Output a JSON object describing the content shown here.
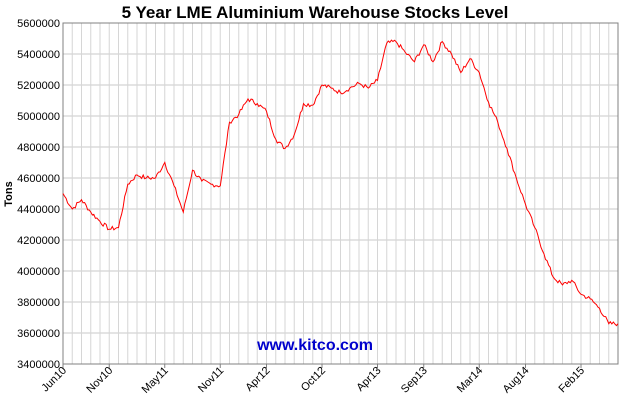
{
  "chart_data": {
    "type": "line",
    "title": "5 Year LME Aluminium Warehouse Stocks Level",
    "xlabel": "",
    "ylabel": "Tons",
    "ylim": [
      3400000,
      5600000
    ],
    "yticks": [
      "3400000",
      "3600000",
      "3800000",
      "4000000",
      "4200000",
      "4400000",
      "4600000",
      "4800000",
      "5000000",
      "5200000",
      "5400000",
      "5600000"
    ],
    "xticks": [
      "Jun10",
      "Nov10",
      "May11",
      "Nov11",
      "Apr12",
      "Oct12",
      "Apr13",
      "Sep13",
      "Mar14",
      "Aug14",
      "Feb15"
    ],
    "grid": true,
    "legend": "none",
    "watermark": "www.kitco.com",
    "line_color": "#ff0000",
    "series": [
      {
        "x": [
          "Jun10",
          "Jul10",
          "Aug10",
          "Sep10",
          "Oct10",
          "Nov10",
          "Dec10",
          "Jan11",
          "Feb11",
          "Mar11",
          "Apr11",
          "May11",
          "Jun11",
          "Jul11",
          "Aug11",
          "Sep11",
          "Oct11",
          "Nov11",
          "Dec11",
          "Jan12",
          "Feb12",
          "Mar12",
          "Apr12",
          "May12",
          "Jun12",
          "Jul12",
          "Aug12",
          "Sep12",
          "Oct12",
          "Nov12",
          "Dec12",
          "Jan13",
          "Feb13",
          "Mar13",
          "Apr13",
          "May13",
          "Jun13",
          "Jul13",
          "Aug13",
          "Sep13",
          "Oct13",
          "Nov13",
          "Dec13",
          "Jan14",
          "Feb14",
          "Mar14",
          "Apr14",
          "May14",
          "Jun14",
          "Jul14",
          "Aug14",
          "Sep14",
          "Oct14",
          "Nov14",
          "Dec14",
          "Jan15",
          "Feb15",
          "Mar15",
          "Apr15",
          "May15"
        ],
        "values": [
          4500000,
          4400000,
          4460000,
          4380000,
          4320000,
          4270000,
          4280000,
          4560000,
          4620000,
          4600000,
          4600000,
          4700000,
          4550000,
          4380000,
          4650000,
          4580000,
          4560000,
          4550000,
          4960000,
          5010000,
          5110000,
          5080000,
          5030000,
          4850000,
          4790000,
          4880000,
          5080000,
          5070000,
          5200000,
          5180000,
          5150000,
          5180000,
          5210000,
          5180000,
          5230000,
          5470000,
          5480000,
          5410000,
          5350000,
          5460000,
          5350000,
          5480000,
          5400000,
          5280000,
          5370000,
          5280000,
          5090000,
          4960000,
          4790000,
          4600000,
          4430000,
          4280000,
          4110000,
          3960000,
          3910000,
          3940000,
          3850000,
          3820000,
          3760000,
          3660000
        ]
      }
    ]
  }
}
